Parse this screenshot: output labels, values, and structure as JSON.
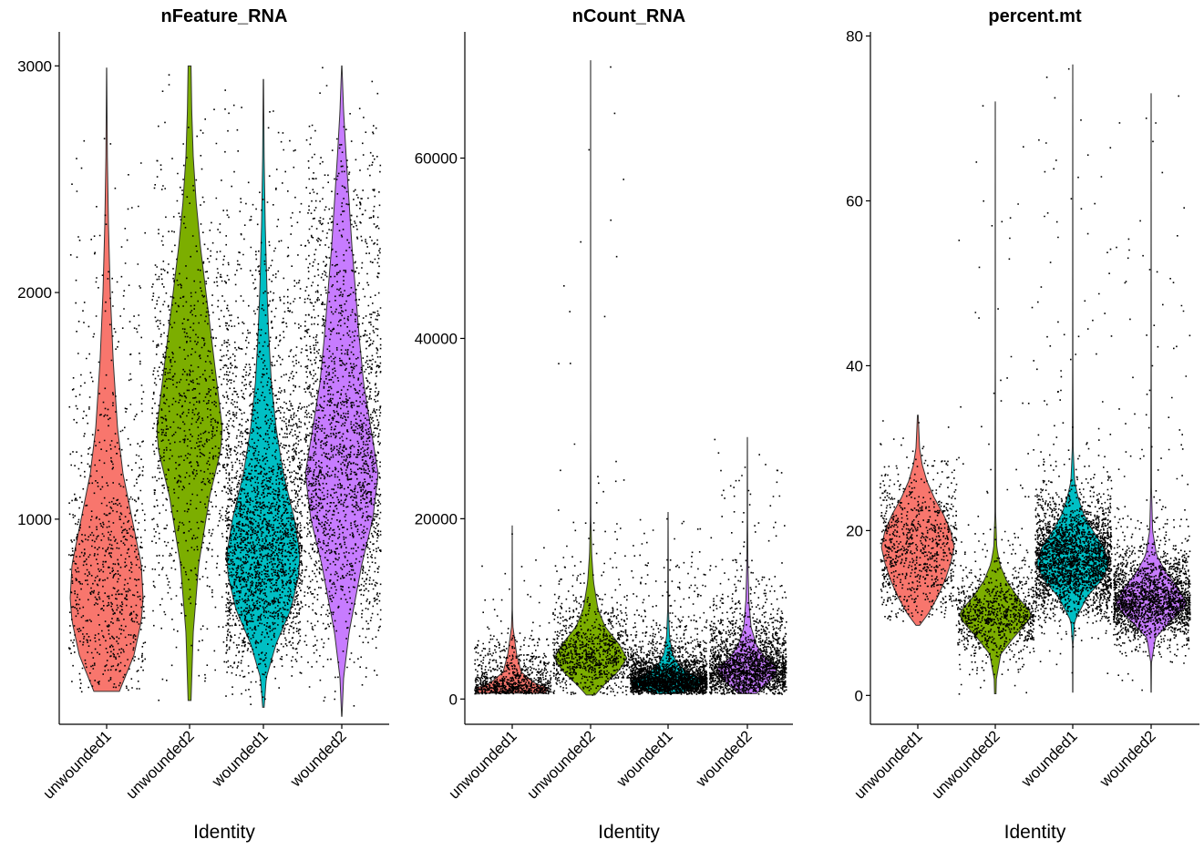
{
  "chart_data": [
    {
      "type": "violin",
      "title": "nFeature_RNA",
      "xlabel": "Identity",
      "ylabel": "",
      "categories": [
        "unwounded1",
        "unwounded2",
        "wounded1",
        "wounded2"
      ],
      "yticks": [
        1000,
        2000,
        3000
      ],
      "ylim": [
        95,
        3150
      ],
      "series": [
        {
          "category": "unwounded1",
          "min": 240,
          "max": 2990,
          "n_points": 900,
          "profile": [
            [
              240,
              0.35
            ],
            [
              400,
              0.75
            ],
            [
              550,
              0.95
            ],
            [
              650,
              1.0
            ],
            [
              800,
              0.95
            ],
            [
              1000,
              0.7
            ],
            [
              1200,
              0.45
            ],
            [
              1400,
              0.3
            ],
            [
              1700,
              0.18
            ],
            [
              2000,
              0.1
            ],
            [
              2300,
              0.05
            ],
            [
              2600,
              0.02
            ],
            [
              2990,
              0.003
            ]
          ]
        },
        {
          "category": "unwounded2",
          "min": 200,
          "max": 3000,
          "n_points": 1000,
          "profile": [
            [
              200,
              0.04
            ],
            [
              500,
              0.1
            ],
            [
              800,
              0.25
            ],
            [
              1100,
              0.55
            ],
            [
              1300,
              0.85
            ],
            [
              1400,
              0.9
            ],
            [
              1600,
              0.75
            ],
            [
              1800,
              0.6
            ],
            [
              2000,
              0.45
            ],
            [
              2200,
              0.3
            ],
            [
              2400,
              0.18
            ],
            [
              2600,
              0.1
            ],
            [
              2800,
              0.06
            ],
            [
              3000,
              0.04
            ]
          ]
        },
        {
          "category": "wounded1",
          "min": 170,
          "max": 2940,
          "n_points": 2800,
          "profile": [
            [
              170,
              0.02
            ],
            [
              300,
              0.08
            ],
            [
              450,
              0.35
            ],
            [
              600,
              0.75
            ],
            [
              750,
              0.97
            ],
            [
              850,
              1.0
            ],
            [
              1000,
              0.85
            ],
            [
              1200,
              0.55
            ],
            [
              1400,
              0.35
            ],
            [
              1600,
              0.22
            ],
            [
              1800,
              0.15
            ],
            [
              2000,
              0.1
            ],
            [
              2300,
              0.05
            ],
            [
              2600,
              0.02
            ],
            [
              2940,
              0.005
            ]
          ]
        },
        {
          "category": "wounded2",
          "min": 130,
          "max": 3000,
          "n_points": 2200,
          "profile": [
            [
              130,
              0.005
            ],
            [
              300,
              0.05
            ],
            [
              500,
              0.2
            ],
            [
              800,
              0.55
            ],
            [
              1000,
              0.85
            ],
            [
              1200,
              1.0
            ],
            [
              1400,
              0.8
            ],
            [
              1600,
              0.6
            ],
            [
              1800,
              0.48
            ],
            [
              2000,
              0.38
            ],
            [
              2200,
              0.28
            ],
            [
              2400,
              0.2
            ],
            [
              2600,
              0.12
            ],
            [
              2800,
              0.05
            ],
            [
              3000,
              0.005
            ]
          ]
        }
      ]
    },
    {
      "type": "violin",
      "title": "nCount_RNA",
      "xlabel": "Identity",
      "ylabel": "",
      "categories": [
        "unwounded1",
        "unwounded2",
        "wounded1",
        "wounded2"
      ],
      "yticks": [
        0,
        20000,
        40000,
        60000
      ],
      "ylim": [
        -2800,
        74000
      ],
      "series": [
        {
          "category": "unwounded1",
          "min": 650,
          "max": 19200,
          "n_points": 900,
          "profile": [
            [
              650,
              0.9
            ],
            [
              1200,
              1.0
            ],
            [
              1800,
              0.6
            ],
            [
              3000,
              0.25
            ],
            [
              5000,
              0.12
            ],
            [
              6500,
              0.07
            ],
            [
              8000,
              0.02
            ],
            [
              10000,
              0.005
            ],
            [
              19200,
              0.0015
            ]
          ]
        },
        {
          "category": "unwounded2",
          "min": 450,
          "max": 70800,
          "n_points": 1000,
          "profile": [
            [
              450,
              0.12
            ],
            [
              1500,
              0.35
            ],
            [
              3000,
              0.75
            ],
            [
              4500,
              1.0
            ],
            [
              6000,
              0.8
            ],
            [
              8000,
              0.4
            ],
            [
              10000,
              0.2
            ],
            [
              13000,
              0.08
            ],
            [
              16000,
              0.03
            ],
            [
              20000,
              0.008
            ],
            [
              30000,
              0.003
            ],
            [
              70800,
              0.002
            ]
          ]
        },
        {
          "category": "wounded1",
          "min": 600,
          "max": 20700,
          "n_points": 2800,
          "profile": [
            [
              600,
              0.3
            ],
            [
              1200,
              0.8
            ],
            [
              2000,
              1.0
            ],
            [
              3000,
              0.5
            ],
            [
              4000,
              0.25
            ],
            [
              5000,
              0.12
            ],
            [
              7000,
              0.04
            ],
            [
              10000,
              0.01
            ],
            [
              20700,
              0.002
            ]
          ]
        },
        {
          "category": "wounded2",
          "min": 600,
          "max": 29000,
          "n_points": 2200,
          "profile": [
            [
              600,
              0.25
            ],
            [
              1500,
              0.5
            ],
            [
              2500,
              0.75
            ],
            [
              3500,
              0.82
            ],
            [
              4500,
              0.5
            ],
            [
              6000,
              0.25
            ],
            [
              8000,
              0.1
            ],
            [
              11000,
              0.04
            ],
            [
              15000,
              0.015
            ],
            [
              20000,
              0.006
            ],
            [
              29000,
              0.002
            ]
          ]
        }
      ]
    },
    {
      "type": "violin",
      "title": "percent.mt",
      "xlabel": "Identity",
      "ylabel": "",
      "categories": [
        "unwounded1",
        "unwounded2",
        "wounded1",
        "wounded2"
      ],
      "yticks": [
        0,
        20,
        40,
        60,
        80
      ],
      "ylim": [
        -3.5,
        80.5
      ],
      "series": [
        {
          "category": "unwounded1",
          "min": 8.5,
          "max": 34,
          "n_points": 900,
          "profile": [
            [
              8.5,
              0.05
            ],
            [
              10,
              0.3
            ],
            [
              12,
              0.55
            ],
            [
              14,
              0.75
            ],
            [
              16,
              0.9
            ],
            [
              18,
              1.0
            ],
            [
              20,
              0.9
            ],
            [
              22,
              0.7
            ],
            [
              24,
              0.45
            ],
            [
              26,
              0.25
            ],
            [
              28,
              0.12
            ],
            [
              30,
              0.05
            ],
            [
              34,
              0.01
            ]
          ]
        },
        {
          "category": "unwounded2",
          "min": 0.2,
          "max": 72,
          "n_points": 1000,
          "profile": [
            [
              0.2,
              0.02
            ],
            [
              2,
              0.03
            ],
            [
              5,
              0.15
            ],
            [
              7,
              0.5
            ],
            [
              9,
              0.9
            ],
            [
              10,
              1.0
            ],
            [
              12,
              0.6
            ],
            [
              14,
              0.3
            ],
            [
              16,
              0.12
            ],
            [
              18,
              0.04
            ],
            [
              22,
              0.01
            ],
            [
              40,
              0.004
            ],
            [
              72,
              0.002
            ]
          ]
        },
        {
          "category": "wounded1",
          "min": 0.4,
          "max": 76.5,
          "n_points": 2800,
          "profile": [
            [
              0.4,
              0.004
            ],
            [
              6,
              0.006
            ],
            [
              9,
              0.05
            ],
            [
              12,
              0.4
            ],
            [
              14,
              0.8
            ],
            [
              16,
              1.0
            ],
            [
              18,
              0.85
            ],
            [
              20,
              0.55
            ],
            [
              22,
              0.3
            ],
            [
              24,
              0.15
            ],
            [
              26,
              0.05
            ],
            [
              30,
              0.012
            ],
            [
              40,
              0.005
            ],
            [
              76.5,
              0.002
            ]
          ]
        },
        {
          "category": "wounded2",
          "min": 0.4,
          "max": 73,
          "n_points": 2200,
          "profile": [
            [
              0.4,
              0.004
            ],
            [
              4,
              0.01
            ],
            [
              7,
              0.12
            ],
            [
              9,
              0.55
            ],
            [
              11,
              1.0
            ],
            [
              13,
              0.75
            ],
            [
              15,
              0.4
            ],
            [
              17,
              0.15
            ],
            [
              20,
              0.04
            ],
            [
              25,
              0.01
            ],
            [
              40,
              0.004
            ],
            [
              73,
              0.002
            ]
          ]
        }
      ]
    }
  ],
  "colors": {
    "unwounded1": "#F8766D",
    "unwounded2": "#7CAE00",
    "wounded1": "#00BFC4",
    "wounded2": "#C77CFF"
  }
}
